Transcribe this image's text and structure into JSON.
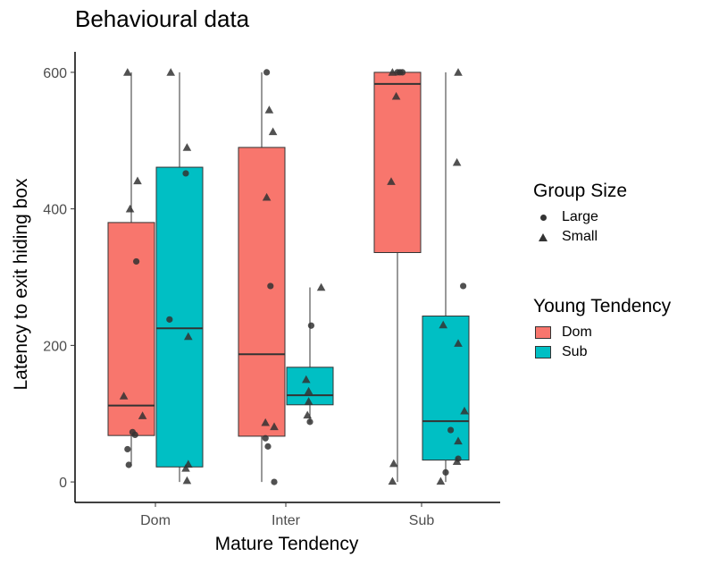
{
  "chart_data": {
    "type": "boxplot",
    "title": "Behavioural data",
    "xlabel": "Mature Tendency",
    "ylabel": "Latency to exit hiding box",
    "categories": [
      "Dom",
      "Inter",
      "Sub"
    ],
    "ylim": [
      -30,
      630
    ],
    "yticks": [
      "0",
      "200",
      "400",
      "600"
    ],
    "grid": false,
    "legend_position": "right",
    "colors": {
      "Dom": "#F8766D",
      "Sub": "#00BFC4",
      "points": "#333333"
    },
    "legend_group_size": {
      "title": "Group Size",
      "items": [
        "Large",
        "Small"
      ]
    },
    "legend_young": {
      "title": "Young Tendency",
      "items": [
        "Dom",
        "Sub"
      ]
    },
    "series": [
      {
        "name": "Dom",
        "boxes": [
          {
            "category": "Dom",
            "min": 24,
            "q1": 68,
            "median": 112,
            "q3": 380,
            "max": 600
          },
          {
            "category": "Inter",
            "min": 0,
            "q1": 67,
            "median": 187,
            "q3": 490,
            "max": 600
          },
          {
            "category": "Sub",
            "min": 0,
            "q1": 336,
            "median": 583,
            "q3": 600,
            "max": 600
          }
        ]
      },
      {
        "name": "Sub",
        "boxes": [
          {
            "category": "Dom",
            "min": 0,
            "q1": 22,
            "median": 225,
            "q3": 461,
            "max": 600
          },
          {
            "category": "Inter",
            "min": 87,
            "q1": 113,
            "median": 127,
            "q3": 168,
            "max": 285
          },
          {
            "category": "Sub",
            "min": 0,
            "q1": 32,
            "median": 89,
            "q3": 243,
            "max": 600
          }
        ]
      }
    ],
    "points": [
      {
        "category": "Dom",
        "young": "Dom",
        "group_size": "Small",
        "y": 600,
        "dx": -0.3
      },
      {
        "category": "Dom",
        "young": "Dom",
        "group_size": "Small",
        "y": 441,
        "dx": 0.5
      },
      {
        "category": "Dom",
        "young": "Dom",
        "group_size": "Small",
        "y": 400,
        "dx": -0.1
      },
      {
        "category": "Dom",
        "young": "Dom",
        "group_size": "Large",
        "y": 323,
        "dx": 0.4
      },
      {
        "category": "Dom",
        "young": "Dom",
        "group_size": "Small",
        "y": 126,
        "dx": -0.6
      },
      {
        "category": "Dom",
        "young": "Dom",
        "group_size": "Small",
        "y": 97,
        "dx": 0.9
      },
      {
        "category": "Dom",
        "young": "Dom",
        "group_size": "Large",
        "y": 73,
        "dx": 0.1
      },
      {
        "category": "Dom",
        "young": "Dom",
        "group_size": "Large",
        "y": 69,
        "dx": 0.3
      },
      {
        "category": "Dom",
        "young": "Dom",
        "group_size": "Large",
        "y": 48,
        "dx": -0.3
      },
      {
        "category": "Dom",
        "young": "Dom",
        "group_size": "Large",
        "y": 25,
        "dx": -0.2
      },
      {
        "category": "Dom",
        "young": "Sub",
        "group_size": "Small",
        "y": 600,
        "dx": -0.7
      },
      {
        "category": "Dom",
        "young": "Sub",
        "group_size": "Small",
        "y": 490,
        "dx": 0.6
      },
      {
        "category": "Dom",
        "young": "Sub",
        "group_size": "Large",
        "y": 452,
        "dx": 0.5
      },
      {
        "category": "Dom",
        "young": "Sub",
        "group_size": "Large",
        "y": 238,
        "dx": -0.8
      },
      {
        "category": "Dom",
        "young": "Sub",
        "group_size": "Small",
        "y": 213,
        "dx": 0.7
      },
      {
        "category": "Dom",
        "young": "Sub",
        "group_size": "Small",
        "y": 26,
        "dx": 0.7
      },
      {
        "category": "Dom",
        "young": "Sub",
        "group_size": "Small",
        "y": 20,
        "dx": 0.5
      },
      {
        "category": "Dom",
        "young": "Sub",
        "group_size": "Small",
        "y": 2,
        "dx": 0.6
      },
      {
        "category": "Inter",
        "young": "Dom",
        "group_size": "Large",
        "y": 600,
        "dx": 0.4
      },
      {
        "category": "Inter",
        "young": "Dom",
        "group_size": "Small",
        "y": 545,
        "dx": 0.6
      },
      {
        "category": "Inter",
        "young": "Dom",
        "group_size": "Small",
        "y": 513,
        "dx": 0.9
      },
      {
        "category": "Inter",
        "young": "Dom",
        "group_size": "Small",
        "y": 417,
        "dx": 0.4
      },
      {
        "category": "Inter",
        "young": "Dom",
        "group_size": "Large",
        "y": 287,
        "dx": 0.7
      },
      {
        "category": "Inter",
        "young": "Dom",
        "group_size": "Small",
        "y": 87,
        "dx": 0.3
      },
      {
        "category": "Inter",
        "young": "Dom",
        "group_size": "Small",
        "y": 81,
        "dx": 1.0
      },
      {
        "category": "Inter",
        "young": "Dom",
        "group_size": "Large",
        "y": 64,
        "dx": 0.3
      },
      {
        "category": "Inter",
        "young": "Dom",
        "group_size": "Large",
        "y": 52,
        "dx": 0.5
      },
      {
        "category": "Inter",
        "young": "Dom",
        "group_size": "Large",
        "y": 0,
        "dx": 1.0
      },
      {
        "category": "Inter",
        "young": "Sub",
        "group_size": "Small",
        "y": 285,
        "dx": 0.9
      },
      {
        "category": "Inter",
        "young": "Sub",
        "group_size": "Large",
        "y": 229,
        "dx": 0.1
      },
      {
        "category": "Inter",
        "young": "Sub",
        "group_size": "Small",
        "y": 150,
        "dx": -0.3
      },
      {
        "category": "Inter",
        "young": "Sub",
        "group_size": "Small",
        "y": 133,
        "dx": -0.1
      },
      {
        "category": "Inter",
        "young": "Sub",
        "group_size": "Small",
        "y": 118,
        "dx": -0.1
      },
      {
        "category": "Inter",
        "young": "Sub",
        "group_size": "Small",
        "y": 98,
        "dx": -0.2
      },
      {
        "category": "Inter",
        "young": "Sub",
        "group_size": "Large",
        "y": 88,
        "dx": 0.0
      },
      {
        "category": "Sub",
        "young": "Dom",
        "group_size": "Small",
        "y": 600,
        "dx": -0.4
      },
      {
        "category": "Sub",
        "young": "Dom",
        "group_size": "Large",
        "y": 600,
        "dx": 0.0
      },
      {
        "category": "Sub",
        "young": "Dom",
        "group_size": "Large",
        "y": 600,
        "dx": 0.2
      },
      {
        "category": "Sub",
        "young": "Dom",
        "group_size": "Large",
        "y": 600,
        "dx": 0.4
      },
      {
        "category": "Sub",
        "young": "Dom",
        "group_size": "Small",
        "y": 565,
        "dx": -0.1
      },
      {
        "category": "Sub",
        "young": "Dom",
        "group_size": "Small",
        "y": 440,
        "dx": -0.5
      },
      {
        "category": "Sub",
        "young": "Dom",
        "group_size": "Small",
        "y": 27,
        "dx": -0.3
      },
      {
        "category": "Sub",
        "young": "Dom",
        "group_size": "Small",
        "y": 1,
        "dx": -0.4
      },
      {
        "category": "Sub",
        "young": "Sub",
        "group_size": "Small",
        "y": 600,
        "dx": 1.0
      },
      {
        "category": "Sub",
        "young": "Sub",
        "group_size": "Small",
        "y": 468,
        "dx": 0.9
      },
      {
        "category": "Sub",
        "young": "Sub",
        "group_size": "Large",
        "y": 287,
        "dx": 1.4
      },
      {
        "category": "Sub",
        "young": "Sub",
        "group_size": "Small",
        "y": 230,
        "dx": -0.2
      },
      {
        "category": "Sub",
        "young": "Sub",
        "group_size": "Small",
        "y": 203,
        "dx": 1.0
      },
      {
        "category": "Sub",
        "young": "Sub",
        "group_size": "Small",
        "y": 104,
        "dx": 1.5
      },
      {
        "category": "Sub",
        "young": "Sub",
        "group_size": "Large",
        "y": 76,
        "dx": 0.4
      },
      {
        "category": "Sub",
        "young": "Sub",
        "group_size": "Small",
        "y": 60,
        "dx": 1.0
      },
      {
        "category": "Sub",
        "young": "Sub",
        "group_size": "Large",
        "y": 34,
        "dx": 1.0
      },
      {
        "category": "Sub",
        "young": "Sub",
        "group_size": "Small",
        "y": 30,
        "dx": 0.9
      },
      {
        "category": "Sub",
        "young": "Sub",
        "group_size": "Large",
        "y": 14,
        "dx": 0.0
      },
      {
        "category": "Sub",
        "young": "Sub",
        "group_size": "Small",
        "y": 1,
        "dx": -0.4
      }
    ]
  }
}
